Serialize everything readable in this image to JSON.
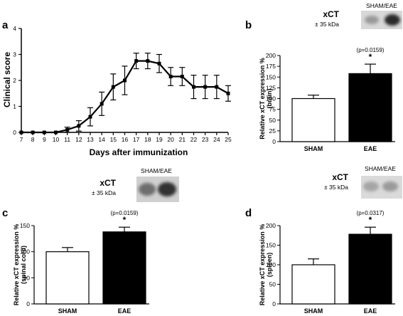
{
  "chart_data": [
    {
      "panel": "a",
      "type": "line",
      "xlabel": "Days after immunization",
      "ylabel": "Clinical score",
      "xlim": [
        7,
        25
      ],
      "ylim": [
        0,
        4
      ],
      "x_ticks": [
        7,
        8,
        9,
        10,
        11,
        12,
        13,
        14,
        15,
        16,
        17,
        18,
        19,
        20,
        21,
        22,
        23,
        24,
        25
      ],
      "y_ticks": [
        0,
        1,
        2,
        3,
        4
      ],
      "x": [
        7,
        8,
        9,
        10,
        11,
        12,
        13,
        14,
        15,
        16,
        17,
        18,
        19,
        20,
        21,
        22,
        23,
        24,
        25
      ],
      "values": [
        0,
        0,
        0,
        0,
        0.1,
        0.25,
        0.6,
        1.1,
        1.75,
        2.0,
        2.75,
        2.75,
        2.65,
        2.15,
        2.15,
        1.75,
        1.75,
        1.75,
        1.5
      ],
      "errors": [
        0,
        0,
        0,
        0,
        0.1,
        0.2,
        0.35,
        0.45,
        0.5,
        0.55,
        0.3,
        0.3,
        0.35,
        0.35,
        0.35,
        0.45,
        0.45,
        0.45,
        0.3
      ]
    },
    {
      "panel": "b",
      "type": "bar",
      "categories": [
        "SHAM",
        "EAE"
      ],
      "values": [
        100,
        158
      ],
      "errors": [
        8,
        22
      ],
      "ylabel": "Relative xCT expression %",
      "ylabel2": "(brain)",
      "ylim": [
        0,
        200
      ],
      "y_ticks": [
        0,
        25,
        50,
        75,
        100,
        125,
        150,
        175,
        200
      ],
      "p_value": "(p=0.0159)",
      "significance": "*",
      "blot": {
        "protein": "xCT",
        "size": "± 35 kDa",
        "lanes": "SHAM/EAE"
      }
    },
    {
      "panel": "c",
      "type": "bar",
      "categories": [
        "SHAM",
        "EAE"
      ],
      "values": [
        100,
        138
      ],
      "errors": [
        8,
        9
      ],
      "ylabel": "Relative xCT expression %",
      "ylabel2": "(spinal cord)",
      "ylim": [
        0,
        150
      ],
      "y_ticks": [
        0,
        50,
        100,
        150
      ],
      "p_value": "(p=0.0159)",
      "significance": "*",
      "blot": {
        "protein": "xCT",
        "size": "± 35 kDa",
        "lanes": "SHAM/EAE"
      }
    },
    {
      "panel": "d",
      "type": "bar",
      "categories": [
        "SHAM",
        "EAE"
      ],
      "values": [
        100,
        178
      ],
      "errors": [
        15,
        18
      ],
      "ylabel": "Relative xCT expression %",
      "ylabel2": "(spleen)",
      "ylim": [
        0,
        200
      ],
      "y_ticks": [
        0,
        50,
        100,
        150,
        200
      ],
      "p_value": "(p=0.0317)",
      "significance": "*",
      "blot": {
        "protein": "xCT",
        "size": "± 35 kDa",
        "lanes": "SHAM/EAE"
      }
    }
  ]
}
